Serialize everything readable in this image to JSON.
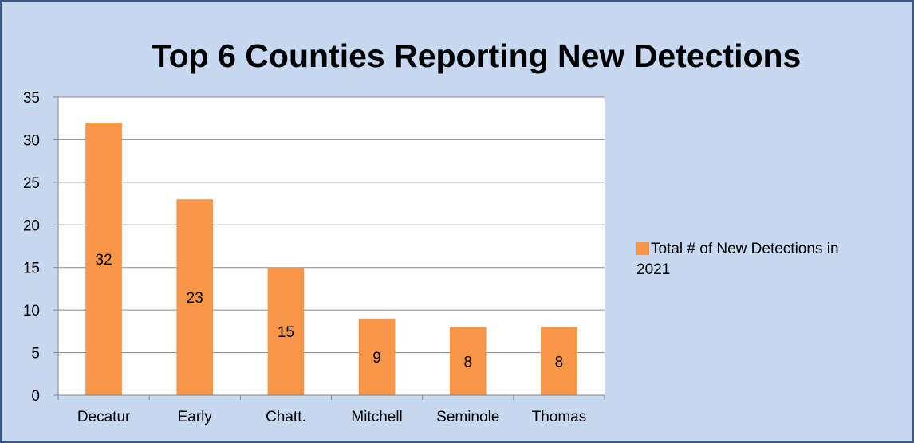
{
  "chart_data": {
    "type": "bar",
    "title": "Top 6 Counties Reporting New Detections",
    "categories": [
      "Decatur",
      "Early",
      "Chatt.",
      "Mitchell",
      "Seminole",
      "Thomas"
    ],
    "series": [
      {
        "name": "Total # of New Detections in 2021",
        "values": [
          32,
          23,
          15,
          9,
          8,
          8
        ],
        "color": "#f79646"
      }
    ],
    "ylim": [
      0,
      35
    ],
    "yticks": [
      0,
      5,
      10,
      15,
      20,
      25,
      30,
      35
    ],
    "grid": true,
    "data_labels": true,
    "legend_position": "right",
    "colors": {
      "chart_background": "#c6d9f1",
      "plot_background": "#ffffff",
      "border": "#3b5a85",
      "gridline": "#878787"
    }
  }
}
